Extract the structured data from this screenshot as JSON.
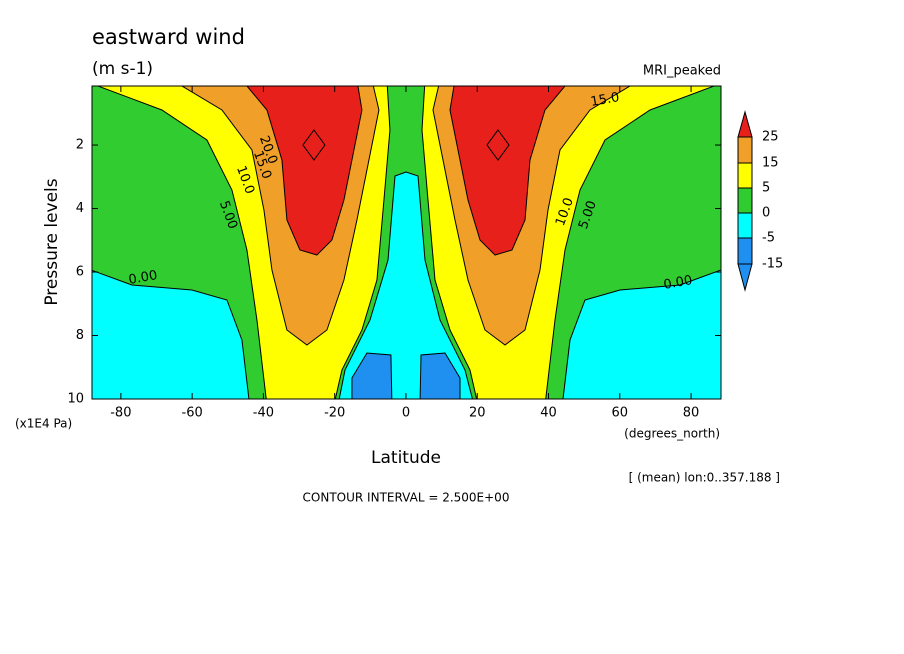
{
  "chart_data": {
    "type": "contour",
    "title": "eastward wind",
    "subtitle": "(m s-1)",
    "dataset_label": "MRI_peaked",
    "x_label": "Latitude",
    "x_units": "(degrees_north)",
    "y_label": "Pressure levels",
    "y_units": "(x1E4 Pa)",
    "footer_note": "[ (mean) lon:0..357.188 ]",
    "contour_note": "CONTOUR INTERVAL = 2.500E+00",
    "xlim": [
      -88.1,
      88.4
    ],
    "xticks": [
      -80,
      -60,
      -40,
      -20,
      0,
      20,
      40,
      60,
      80
    ],
    "ylim": [
      10,
      0.14
    ],
    "yticks": [
      2,
      4,
      6,
      8,
      10
    ],
    "colorbar": {
      "levels": [
        25,
        15,
        5,
        0,
        -5,
        -15
      ],
      "colors": [
        "#e8201c",
        "#f0a028",
        "#ffff00",
        "#30cc30",
        "#00ffff",
        "#2090f0",
        "#2090f0"
      ]
    },
    "contour_labels": [
      "0.00",
      "0.00",
      "5.00",
      "5.00",
      "10.0",
      "10.0",
      "15.0",
      "15.0",
      "20.0"
    ]
  }
}
